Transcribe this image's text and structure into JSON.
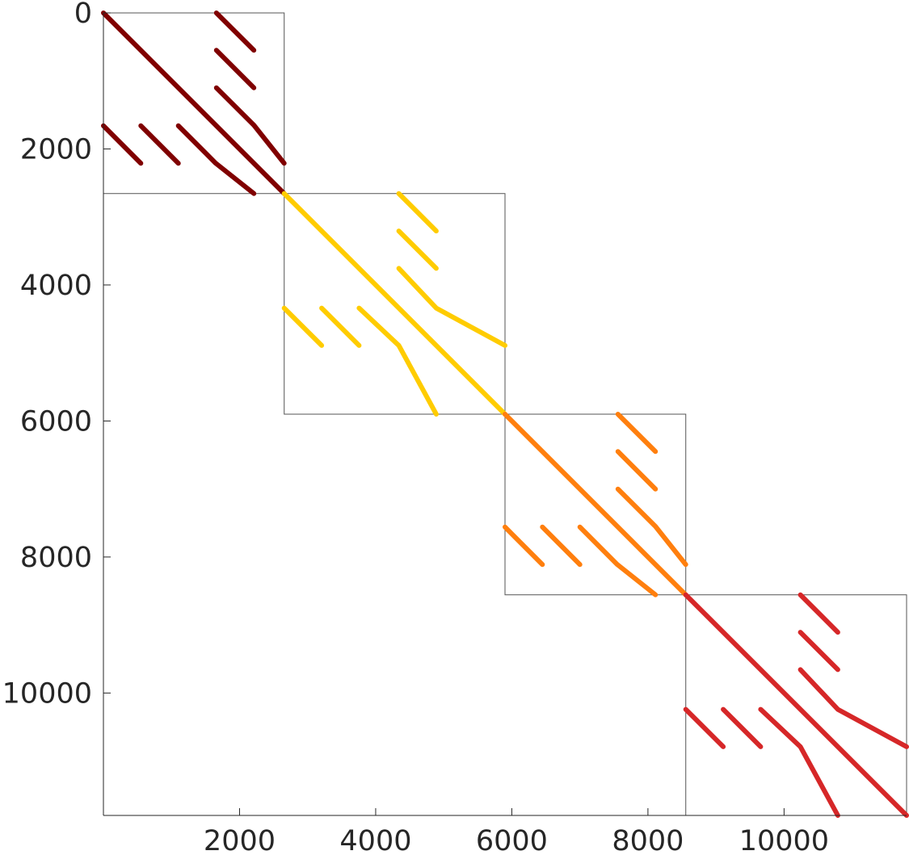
{
  "chart_data": {
    "type": "scatter",
    "title": "",
    "xlabel": "",
    "ylabel": "",
    "xlim": [
      0,
      11800
    ],
    "ylim": [
      0,
      11800
    ],
    "y_axis_inverted": true,
    "grid": false,
    "x_ticks": [
      "2000",
      "4000",
      "6000",
      "8000",
      "10000"
    ],
    "y_ticks": [
      "0",
      "2000",
      "4000",
      "6000",
      "8000",
      "10000"
    ],
    "blocks": [
      {
        "color": "#800000",
        "range": [
          0,
          2656
        ],
        "segments": [
          [
            [
              0,
              0
            ],
            [
              2656,
              2656
            ]
          ],
          [
            [
              1660,
              0
            ],
            [
              2210,
              550
            ]
          ],
          [
            [
              1660,
              550
            ],
            [
              2210,
              1100
            ]
          ],
          [
            [
              1660,
              1100
            ],
            [
              2210,
              1650
            ],
            [
              2656,
              2210
            ]
          ],
          [
            [
              0,
              1660
            ],
            [
              550,
              2210
            ]
          ],
          [
            [
              550,
              1660
            ],
            [
              1100,
              2210
            ]
          ],
          [
            [
              1100,
              1660
            ],
            [
              1650,
              2210
            ],
            [
              2210,
              2656
            ]
          ]
        ]
      },
      {
        "color": "#FFCC00",
        "range": [
          2656,
          5900
        ],
        "segments": [
          [
            [
              2656,
              2656
            ],
            [
              5900,
              5900
            ]
          ],
          [
            [
              4340,
              2656
            ],
            [
              4890,
              3206
            ]
          ],
          [
            [
              4340,
              3206
            ],
            [
              4890,
              3756
            ]
          ],
          [
            [
              4340,
              3756
            ],
            [
              4890,
              4340
            ],
            [
              5900,
              4890
            ]
          ],
          [
            [
              2656,
              4340
            ],
            [
              3206,
              4890
            ]
          ],
          [
            [
              3206,
              4340
            ],
            [
              3756,
              4890
            ]
          ],
          [
            [
              3756,
              4340
            ],
            [
              4340,
              4890
            ],
            [
              4890,
              5900
            ]
          ]
        ]
      },
      {
        "color": "#FF7F0E",
        "range": [
          5900,
          8556
        ],
        "segments": [
          [
            [
              5900,
              5900
            ],
            [
              8556,
              8556
            ]
          ],
          [
            [
              7560,
              5900
            ],
            [
              8110,
              6450
            ]
          ],
          [
            [
              7560,
              6450
            ],
            [
              8110,
              7000
            ]
          ],
          [
            [
              7560,
              7000
            ],
            [
              8110,
              7550
            ],
            [
              8556,
              8110
            ]
          ],
          [
            [
              5900,
              7560
            ],
            [
              6450,
              8110
            ]
          ],
          [
            [
              6450,
              7560
            ],
            [
              7000,
              8110
            ]
          ],
          [
            [
              7000,
              7560
            ],
            [
              7550,
              8110
            ],
            [
              8110,
              8556
            ]
          ]
        ]
      },
      {
        "color": "#D62728",
        "range": [
          8556,
          11800
        ],
        "segments": [
          [
            [
              8556,
              8556
            ],
            [
              11800,
              11800
            ]
          ],
          [
            [
              10240,
              8556
            ],
            [
              10790,
              9106
            ]
          ],
          [
            [
              10240,
              9106
            ],
            [
              10790,
              9656
            ]
          ],
          [
            [
              10240,
              9656
            ],
            [
              10790,
              10240
            ],
            [
              11800,
              10790
            ]
          ],
          [
            [
              8556,
              10240
            ],
            [
              9106,
              10790
            ]
          ],
          [
            [
              9106,
              10240
            ],
            [
              9656,
              10790
            ]
          ],
          [
            [
              9656,
              10240
            ],
            [
              10240,
              10790
            ],
            [
              10790,
              11800
            ]
          ]
        ]
      }
    ]
  }
}
